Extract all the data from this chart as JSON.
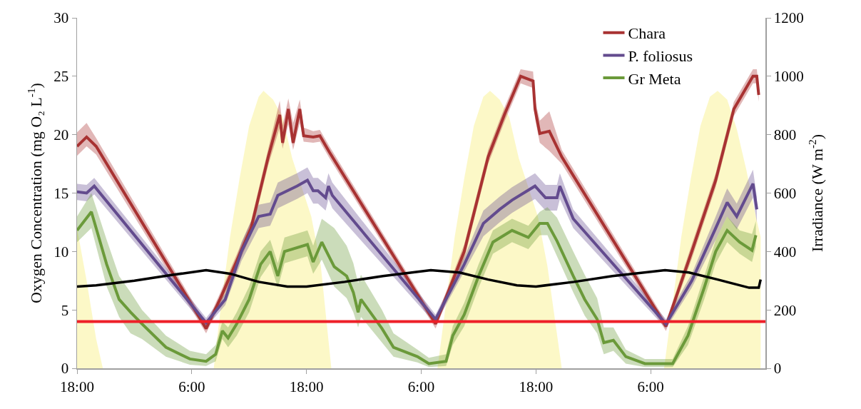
{
  "chart_data": {
    "type": "line",
    "ylabel": "Oxygen Concentration (mg O₂ L$^{-1}$)",
    "y2label": "Irradiance (W m$^{-2}$)",
    "xlim": [
      "--01-01T18:00",
      "--01-04T18:00"
    ],
    "xticks": [
      {
        "value": "--01-01T18:00",
        "label": "18:00"
      },
      {
        "value": "--01-02T06:00",
        "label": "6:00"
      },
      {
        "value": "--01-02T18:00",
        "label": "18:00"
      },
      {
        "value": "--01-03T06:00",
        "label": "6:00"
      },
      {
        "value": "--01-03T18:00",
        "label": "18:00"
      },
      {
        "value": "--01-04T06:00",
        "label": "6:00"
      }
    ],
    "ylim": [
      0,
      30
    ],
    "yticks": [
      0,
      5,
      10,
      15,
      20,
      25,
      30
    ],
    "y2lim": [
      0,
      1200
    ],
    "y2ticks": [
      0,
      200,
      400,
      600,
      800,
      1000,
      1200
    ],
    "legend": "top right",
    "ref_lines": [
      {
        "axis": "y",
        "value": 4,
        "color": "#ee2028"
      }
    ],
    "series": [
      {
        "type": "area",
        "axis": "y2",
        "color": "#fbf6b4",
        "x": [
          "--01-01T18:00",
          "--01-01T19:00",
          "--01-01T20:00",
          "--01-01T20:42",
          "--01-02T08:18",
          "--01-02T09:00",
          "--01-02T10:00",
          "--01-02T11:00",
          "--01-02T12:00",
          "--01-02T13:00",
          "--01-02T13:30",
          "--01-02T14:30",
          "--01-02T15:30",
          "--01-02T16:30",
          "--01-02T17:30",
          "--01-02T18:30",
          "--01-02T19:30",
          "--01-02T20:36",
          "--01-03T07:42",
          "--01-03T08:30",
          "--01-03T09:30",
          "--01-03T10:30",
          "--01-03T11:30",
          "--01-03T12:30",
          "--01-03T13:12",
          "--01-03T14:12",
          "--01-03T15:12",
          "--01-03T16:12",
          "--01-03T17:12",
          "--01-03T18:12",
          "--01-03T19:12",
          "--01-03T20:42",
          "--01-04T07:24",
          "--01-04T08:12",
          "--01-04T09:12",
          "--01-04T10:12",
          "--01-04T11:12",
          "--01-04T12:12",
          "--01-04T13:00",
          "--01-04T14:00",
          "--01-04T15:00",
          "--01-04T16:00",
          "--01-04T17:00",
          "--01-04T17:30"
        ],
        "values": [
          480,
          300,
          100,
          0,
          0,
          200,
          450,
          650,
          830,
          930,
          950,
          920,
          860,
          720,
          620,
          520,
          350,
          0,
          0,
          200,
          450,
          650,
          830,
          930,
          950,
          920,
          860,
          720,
          620,
          520,
          350,
          0,
          0,
          200,
          450,
          650,
          830,
          930,
          950,
          920,
          820,
          680,
          520,
          450
        ]
      },
      {
        "name": "Chara",
        "color": "#a83232",
        "x": [
          "--01-01T18:00",
          "--01-01T19:00",
          "--01-01T20:00",
          "--01-02T07:30",
          "--01-02T09:00",
          "--01-02T12:12",
          "--01-02T14:00",
          "--01-02T15:12",
          "--01-02T15:30",
          "--01-02T16:06",
          "--01-02T16:36",
          "--01-02T17:18",
          "--01-02T17:42",
          "--01-02T18:42",
          "--01-02T19:24",
          "--01-02T20:24",
          "--01-03T07:30",
          "--01-03T10:30",
          "--01-03T13:00",
          "--01-03T14:42",
          "--01-03T16:24",
          "--01-03T17:42",
          "--01-03T17:54",
          "--01-03T18:24",
          "--01-03T19:24",
          "--01-03T20:42",
          "--01-04T07:36",
          "--01-04T10:18",
          "--01-04T12:48",
          "--01-04T14:42",
          "--01-04T16:42",
          "--01-04T17:06",
          "--01-04T17:18"
        ],
        "values": [
          19.0,
          19.8,
          19.0,
          3.4,
          6.0,
          12.0,
          18.1,
          21.7,
          19.3,
          22.2,
          19.3,
          22.2,
          19.9,
          19.8,
          19.9,
          18.5,
          3.8,
          10.0,
          18.1,
          21.7,
          25.0,
          24.6,
          22.2,
          20.1,
          20.3,
          18.1,
          3.6,
          10.0,
          16.1,
          22.2,
          25.0,
          25.0,
          23.4
        ],
        "lower": [
          18.2,
          19.0,
          18.3,
          3.0,
          5.5,
          11.4,
          17.4,
          20.6,
          18.8,
          20.9,
          18.7,
          21.0,
          19.4,
          19.3,
          19.4,
          18.0,
          3.4,
          9.4,
          17.5,
          21.1,
          24.4,
          24.0,
          21.4,
          19.3,
          18.6,
          17.5,
          3.2,
          9.4,
          15.5,
          21.6,
          24.4,
          24.4,
          22.8
        ],
        "upper": [
          20.2,
          21.0,
          19.7,
          3.8,
          6.5,
          12.6,
          18.8,
          22.9,
          20.8,
          23.1,
          21.0,
          23.0,
          20.6,
          20.3,
          20.4,
          19.0,
          4.2,
          10.6,
          18.7,
          22.3,
          25.6,
          25.4,
          23.0,
          21.2,
          22.0,
          18.7,
          4.0,
          10.6,
          16.7,
          22.8,
          25.6,
          25.6,
          24.0
        ]
      },
      {
        "name": "P. foliosus",
        "color": "#634b8e",
        "x": [
          "--01-01T18:00",
          "--01-01T19:00",
          "--01-01T19:48",
          "--01-02T07:30",
          "--01-02T09:30",
          "--01-02T11:12",
          "--01-02T13:00",
          "--01-02T14:12",
          "--01-02T15:00",
          "--01-02T17:00",
          "--01-02T18:06",
          "--01-02T18:42",
          "--01-02T19:12",
          "--01-02T20:00",
          "--01-02T20:18",
          "--01-02T20:42",
          "--01-03T07:30",
          "--01-03T10:30",
          "--01-03T12:30",
          "--01-03T14:12",
          "--01-03T15:30",
          "--01-03T17:54",
          "--01-03T19:00",
          "--01-03T20:12",
          "--01-03T20:30",
          "--01-03T21:54",
          "--01-04T07:36",
          "--01-04T10:18",
          "--01-04T12:48",
          "--01-04T14:00",
          "--01-04T15:00",
          "--01-04T16:42",
          "--01-04T17:06"
        ],
        "values": [
          15.1,
          15.0,
          15.6,
          3.9,
          5.9,
          10.0,
          13.0,
          13.2,
          14.8,
          15.6,
          16.1,
          15.2,
          15.2,
          14.6,
          15.6,
          14.8,
          4.2,
          8.9,
          12.4,
          13.6,
          14.4,
          15.6,
          14.6,
          14.6,
          15.6,
          12.8,
          3.8,
          7.5,
          12.0,
          14.2,
          13.0,
          15.8,
          13.6
        ],
        "lower": [
          14.4,
          14.3,
          14.9,
          3.5,
          5.4,
          9.2,
          12.0,
          12.2,
          13.7,
          14.5,
          15.0,
          14.1,
          14.1,
          13.5,
          14.5,
          13.7,
          3.8,
          8.3,
          11.3,
          12.5,
          13.3,
          14.5,
          13.5,
          13.5,
          14.5,
          12.0,
          3.4,
          6.9,
          11.0,
          13.0,
          11.9,
          14.6,
          12.5
        ],
        "upper": [
          15.8,
          15.7,
          16.3,
          4.3,
          6.4,
          10.8,
          14.0,
          14.2,
          15.9,
          16.7,
          17.2,
          16.3,
          16.3,
          15.7,
          16.7,
          15.9,
          4.6,
          9.5,
          13.5,
          14.7,
          15.5,
          16.7,
          15.7,
          15.7,
          16.7,
          13.6,
          4.2,
          8.1,
          13.0,
          15.4,
          14.1,
          17.0,
          14.7
        ]
      },
      {
        "name": "Gr Meta",
        "color": "#6b9a3a",
        "x": [
          "--01-01T18:00",
          "--01-01T19:30",
          "--01-01T21:06",
          "--01-01T22:24",
          "--01-01T23:36",
          "--01-02T00:48",
          "--01-02T03:18",
          "--01-02T05:48",
          "--01-02T07:30",
          "--01-02T08:30",
          "--01-02T09:12",
          "--01-02T09:48",
          "--01-02T10:42",
          "--01-02T12:00",
          "--01-02T13:12",
          "--01-02T14:12",
          "--01-02T15:00",
          "--01-02T15:42",
          "--01-02T18:06",
          "--01-02T18:42",
          "--01-02T19:36",
          "--01-02T20:54",
          "--01-02T22:12",
          "--01-02T22:54",
          "--01-02T23:24",
          "--01-02T23:42",
          "--01-03T01:54",
          "--01-03T03:06",
          "--01-03T05:36",
          "--01-03T06:48",
          "--01-03T08:36",
          "--01-03T09:18",
          "--01-03T10:30",
          "--01-03T12:00",
          "--01-03T13:30",
          "--01-03T15:30",
          "--01-03T17:12",
          "--01-03T18:24",
          "--01-03T19:12",
          "--01-03T20:12",
          "--01-03T21:54",
          "--01-03T23:06",
          "--01-04T00:24",
          "--01-04T01:06",
          "--01-04T02:06",
          "--01-04T03:24",
          "--01-04T05:24",
          "--01-04T08:18",
          "--01-04T09:54",
          "--01-04T11:36",
          "--01-04T12:48",
          "--01-04T14:00",
          "--01-04T15:18",
          "--01-04T16:36",
          "--01-04T17:00"
        ],
        "values": [
          11.8,
          13.4,
          8.9,
          5.9,
          4.8,
          3.8,
          1.8,
          0.8,
          0.6,
          1.2,
          3.2,
          2.6,
          3.8,
          5.9,
          8.9,
          10.0,
          7.9,
          10.0,
          10.6,
          9.1,
          10.8,
          8.7,
          7.9,
          6.5,
          4.8,
          5.9,
          3.4,
          1.8,
          1.0,
          0.4,
          0.6,
          2.8,
          4.6,
          7.9,
          10.8,
          11.8,
          11.2,
          12.4,
          12.4,
          10.9,
          7.9,
          5.9,
          4.2,
          2.2,
          2.4,
          1.0,
          0.4,
          0.4,
          2.8,
          6.9,
          10.0,
          11.8,
          10.8,
          10.1,
          11.4
        ],
        "lower": [
          10.8,
          12.0,
          7.0,
          4.4,
          3.0,
          2.5,
          1.0,
          0.3,
          0.2,
          0.6,
          2.5,
          1.8,
          2.8,
          4.8,
          7.8,
          9.0,
          6.9,
          9.0,
          9.6,
          8.1,
          9.3,
          7.0,
          6.0,
          4.8,
          3.5,
          4.4,
          2.2,
          1.0,
          0.5,
          0.1,
          0.2,
          2.0,
          3.6,
          6.9,
          9.8,
          10.8,
          10.2,
          11.4,
          11.4,
          9.6,
          6.5,
          4.5,
          3.0,
          1.2,
          1.5,
          0.4,
          0.1,
          0.1,
          2.0,
          5.9,
          9.0,
          10.8,
          9.8,
          9.1,
          10.4
        ],
        "upper": [
          13.0,
          15.0,
          11.0,
          7.9,
          6.5,
          5.0,
          2.8,
          1.5,
          1.2,
          2.0,
          4.0,
          3.5,
          4.8,
          7.0,
          10.0,
          11.0,
          9.0,
          11.2,
          11.8,
          10.5,
          12.8,
          12.0,
          10.5,
          9.0,
          7.3,
          8.0,
          5.0,
          3.0,
          1.6,
          0.9,
          1.2,
          3.6,
          5.6,
          8.9,
          11.8,
          12.8,
          12.2,
          13.4,
          13.8,
          12.9,
          10.0,
          8.0,
          6.0,
          3.5,
          3.5,
          1.6,
          0.8,
          0.8,
          3.6,
          7.9,
          11.0,
          13.0,
          11.8,
          11.5,
          12.6
        ]
      },
      {
        "color": "#000000",
        "x": [
          "--01-01T18:00",
          "--01-01T20:00",
          "--01-02T00:00",
          "--01-02T04:00",
          "--01-02T07:30",
          "--01-02T10:00",
          "--01-02T13:00",
          "--01-02T16:00",
          "--01-02T18:00",
          "--01-02T22:00",
          "--01-03T02:00",
          "--01-03T07:00",
          "--01-03T10:00",
          "--01-03T13:00",
          "--01-03T16:00",
          "--01-03T18:00",
          "--01-03T22:00",
          "--01-04T02:00",
          "--01-04T07:30",
          "--01-04T10:00",
          "--01-04T13:00",
          "--01-04T16:18",
          "--01-04T17:18",
          "--01-04T17:30"
        ],
        "values": [
          7.0,
          7.1,
          7.5,
          8.0,
          8.4,
          8.1,
          7.4,
          7.0,
          7.0,
          7.4,
          7.9,
          8.4,
          8.2,
          7.6,
          7.1,
          7.0,
          7.4,
          7.9,
          8.4,
          8.2,
          7.6,
          6.9,
          6.9,
          7.6
        ]
      }
    ]
  }
}
